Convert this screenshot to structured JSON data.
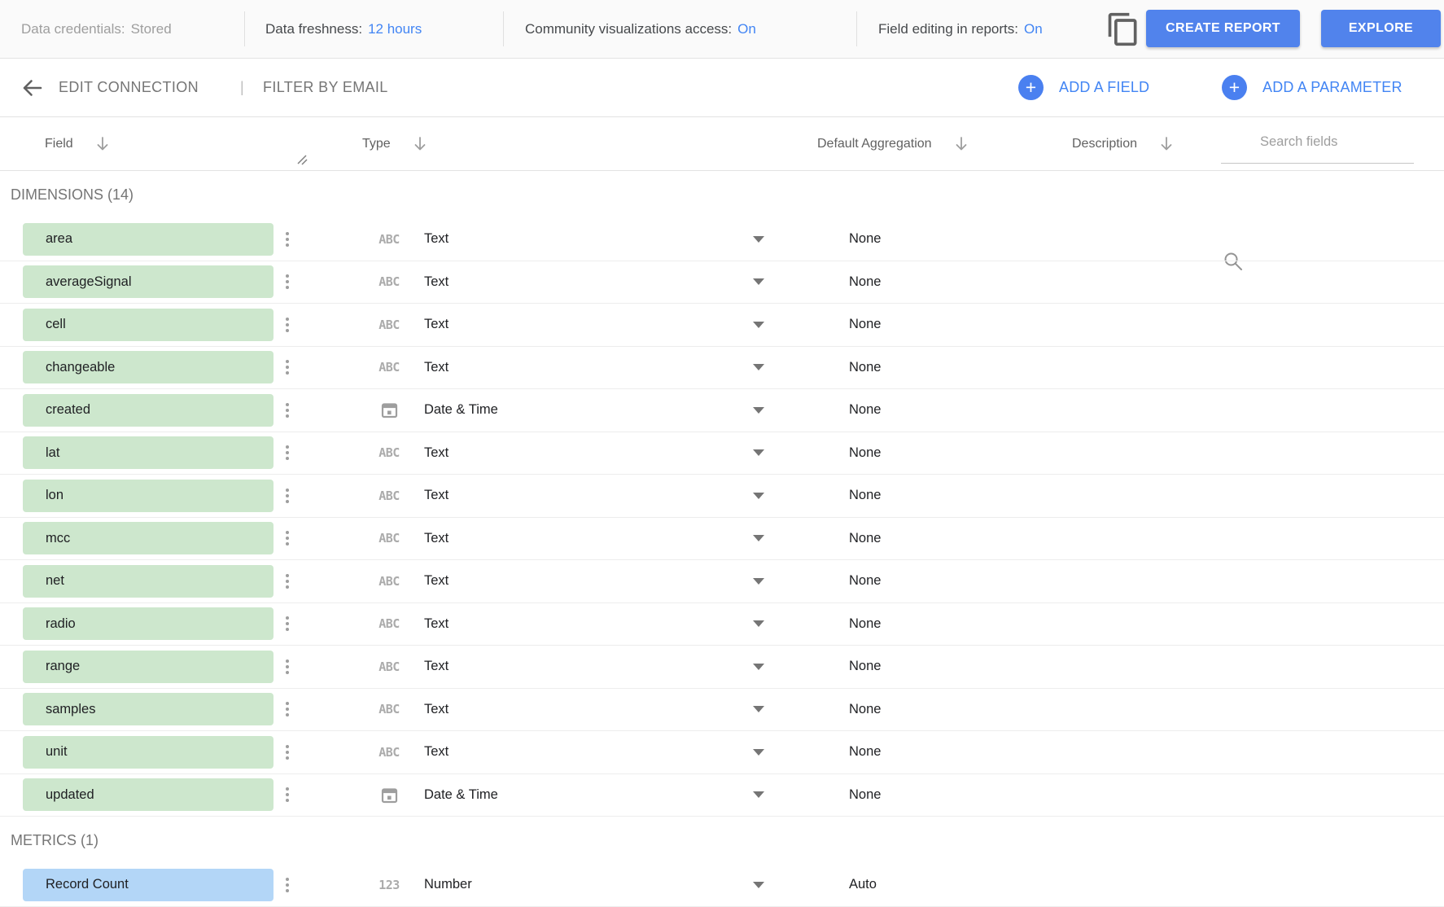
{
  "colors": {
    "accent_blue": "#4285f4",
    "button_blue": "#5183ec",
    "dimension_chip": "#cde7cd",
    "metric_chip": "#b3d6f7"
  },
  "topbar": {
    "credentials": {
      "label": "Data credentials:",
      "value": "Stored"
    },
    "freshness": {
      "label": "Data freshness:",
      "value": "12 hours"
    },
    "community": {
      "label": "Community visualizations access:",
      "value": "On"
    },
    "field_editing": {
      "label": "Field editing in reports:",
      "value": "On"
    },
    "copy_icon": "content-copy",
    "create_report_label": "CREATE REPORT",
    "explore_label": "EXPLORE"
  },
  "toolbar": {
    "edit_connection_label": "EDIT CONNECTION",
    "separator": "|",
    "filter_by_email_label": "FILTER BY EMAIL",
    "plus_glyph": "+",
    "add_field_label": "ADD A FIELD",
    "add_parameter_label": "ADD A PARAMETER"
  },
  "table_header": {
    "field_label": "Field",
    "type_label": "Type",
    "aggregation_label": "Default Aggregation",
    "description_label": "Description",
    "search_placeholder": "Search fields"
  },
  "sections": [
    {
      "title": "DIMENSIONS (14)",
      "chip_color_key": "dimension_chip",
      "rows": [
        {
          "name": "area",
          "type_icon": "text-abc-icon",
          "type_glyph": "ABC",
          "type": "Text",
          "aggregation": "None"
        },
        {
          "name": "averageSignal",
          "type_icon": "text-abc-icon",
          "type_glyph": "ABC",
          "type": "Text",
          "aggregation": "None"
        },
        {
          "name": "cell",
          "type_icon": "text-abc-icon",
          "type_glyph": "ABC",
          "type": "Text",
          "aggregation": "None"
        },
        {
          "name": "changeable",
          "type_icon": "text-abc-icon",
          "type_glyph": "ABC",
          "type": "Text",
          "aggregation": "None"
        },
        {
          "name": "created",
          "type_icon": "calendar-icon",
          "type_glyph": "",
          "type": "Date & Time",
          "aggregation": "None"
        },
        {
          "name": "lat",
          "type_icon": "text-abc-icon",
          "type_glyph": "ABC",
          "type": "Text",
          "aggregation": "None"
        },
        {
          "name": "lon",
          "type_icon": "text-abc-icon",
          "type_glyph": "ABC",
          "type": "Text",
          "aggregation": "None"
        },
        {
          "name": "mcc",
          "type_icon": "text-abc-icon",
          "type_glyph": "ABC",
          "type": "Text",
          "aggregation": "None"
        },
        {
          "name": "net",
          "type_icon": "text-abc-icon",
          "type_glyph": "ABC",
          "type": "Text",
          "aggregation": "None"
        },
        {
          "name": "radio",
          "type_icon": "text-abc-icon",
          "type_glyph": "ABC",
          "type": "Text",
          "aggregation": "None"
        },
        {
          "name": "range",
          "type_icon": "text-abc-icon",
          "type_glyph": "ABC",
          "type": "Text",
          "aggregation": "None"
        },
        {
          "name": "samples",
          "type_icon": "text-abc-icon",
          "type_glyph": "ABC",
          "type": "Text",
          "aggregation": "None"
        },
        {
          "name": "unit",
          "type_icon": "text-abc-icon",
          "type_glyph": "ABC",
          "type": "Text",
          "aggregation": "None"
        },
        {
          "name": "updated",
          "type_icon": "calendar-icon",
          "type_glyph": "",
          "type": "Date & Time",
          "aggregation": "None"
        }
      ]
    },
    {
      "title": "METRICS (1)",
      "chip_color_key": "metric_chip",
      "rows": [
        {
          "name": "Record Count",
          "type_icon": "number-123-icon",
          "type_glyph": "123",
          "type": "Number",
          "aggregation": "Auto"
        }
      ]
    }
  ]
}
